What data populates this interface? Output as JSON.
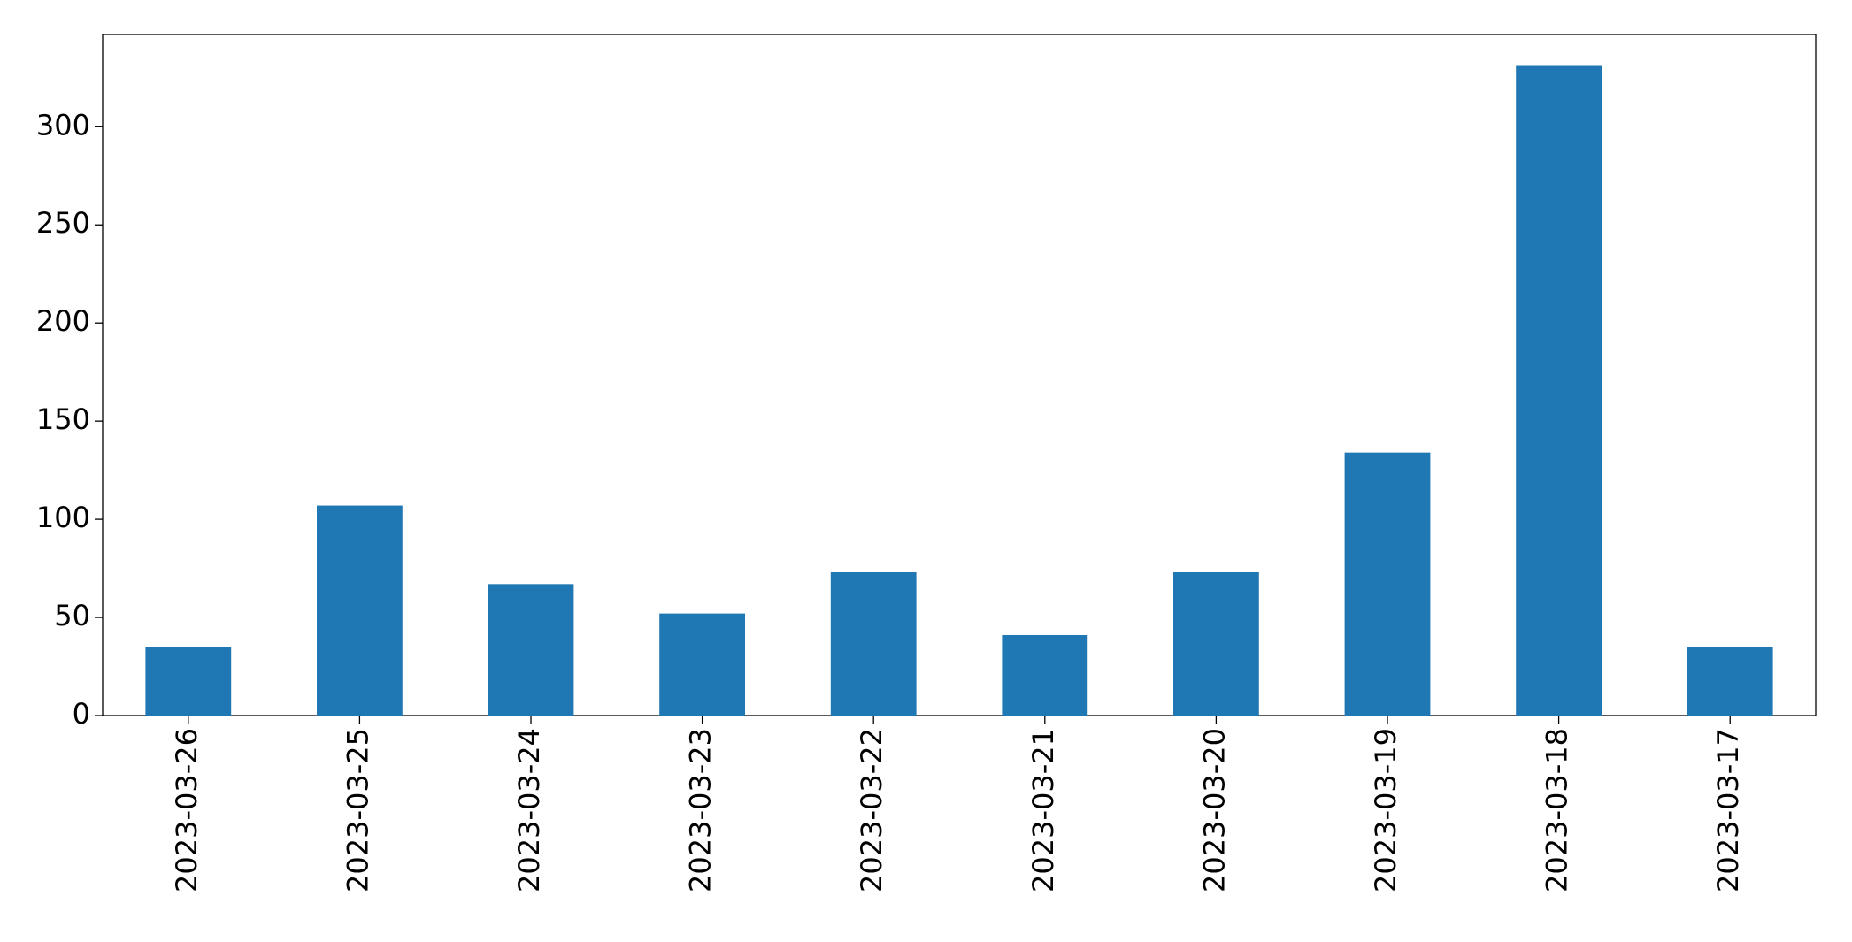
{
  "chart_data": {
    "type": "bar",
    "categories": [
      "2023-03-26",
      "2023-03-25",
      "2023-03-24",
      "2023-03-23",
      "2023-03-22",
      "2023-03-21",
      "2023-03-20",
      "2023-03-19",
      "2023-03-18",
      "2023-03-17"
    ],
    "values": [
      35,
      107,
      67,
      52,
      73,
      41,
      73,
      134,
      331,
      35
    ],
    "color": "#1f77b4",
    "ylim": [
      0,
      347
    ],
    "yticks": [
      0,
      50,
      100,
      150,
      200,
      250,
      300
    ],
    "grid": false
  }
}
